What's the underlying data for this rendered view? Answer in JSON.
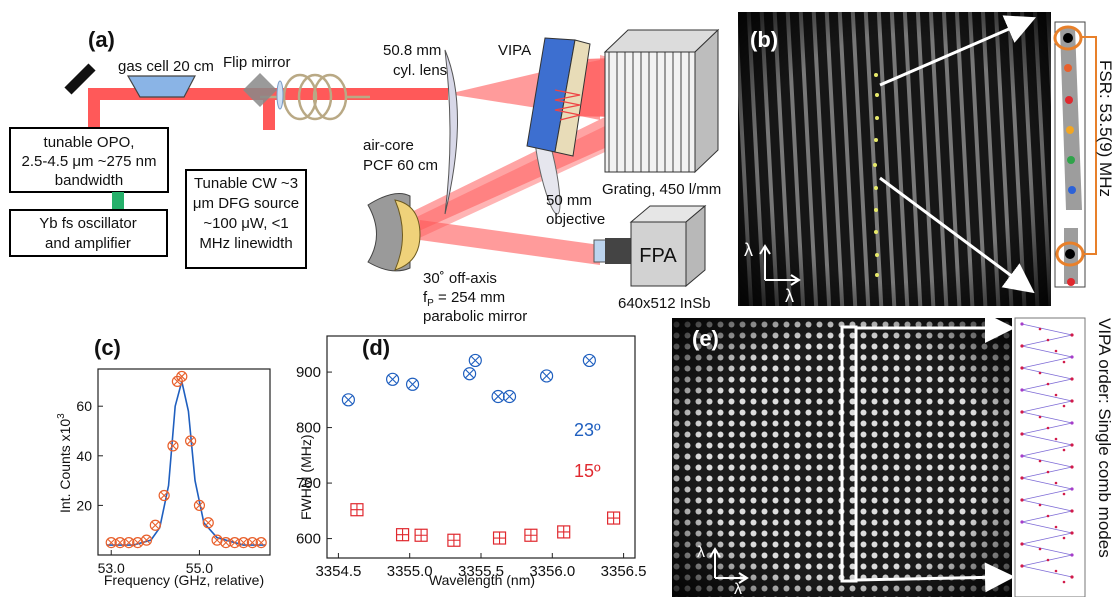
{
  "figure": {
    "panel_a": {
      "label": "(a)",
      "gas_cell": "gas cell 20 cm",
      "flip_mirror": "Flip mirror",
      "opo": [
        "tunable OPO,",
        "2.5-4.5 μm ~275 nm",
        "bandwidth"
      ],
      "yb": [
        "Yb fs oscillator",
        "and amplifier"
      ],
      "cw": [
        "Tunable CW ~3",
        "μm DFG source",
        "~100 μW, <1",
        "MHz linewidth"
      ],
      "cyl_lens": [
        "50.8 mm",
        "cyl. lens"
      ],
      "vipa": "VIPA",
      "pcf": [
        "air-core",
        "PCF 60 cm"
      ],
      "grating": "Grating, 450 l/mm",
      "objective": [
        "50 mm",
        "objective"
      ],
      "fpa": "FPA",
      "fpa_spec": "640x512 InSb",
      "mirror": [
        "30˚ off-axis",
        "f",
        "P",
        " = 254 mm",
        "parabolic mirror"
      ]
    },
    "panel_b": {
      "label": "(b)",
      "axis": "λ",
      "fsr": "FSR: 53.5(9) MHz"
    },
    "panel_c": {
      "label": "(c)",
      "ylabel": "Int. Counts x10",
      "ylabel_exp": "3",
      "xlabel": "Frequency (GHz, relative)"
    },
    "panel_d": {
      "label": "(d)",
      "ylabel": "FWHM (MHz)",
      "xlabel": "Wavelength (nm)",
      "series_labels": [
        "23º",
        "15º"
      ]
    },
    "panel_e": {
      "label": "(e)",
      "axis": "λ",
      "side": "VIPA order: Single comb modes"
    }
  },
  "chart_data": [
    {
      "type": "scatter",
      "panel": "(c)",
      "xlabel": "Frequency (GHz, relative)",
      "ylabel": "Int. Counts x10^3",
      "xlim": [
        52.7,
        56.6
      ],
      "ylim": [
        0,
        75
      ],
      "xticks": [
        53.0,
        55.0
      ],
      "xtick_labels": [
        "53.0",
        "55.0"
      ],
      "yticks": [
        20,
        40,
        60
      ],
      "series": [
        {
          "color": "#e8602c",
          "marker": "circle-x",
          "x": [
            53.0,
            53.2,
            53.4,
            53.6,
            53.8,
            54.0,
            54.2,
            54.4,
            54.5,
            54.6,
            54.8,
            55.0,
            55.2,
            55.4,
            55.6,
            55.8,
            56.0,
            56.2,
            56.4
          ],
          "y": [
            5,
            5,
            5,
            5,
            6,
            12,
            24,
            44,
            70,
            72,
            46,
            20,
            13,
            6,
            5,
            5,
            5,
            5,
            5
          ]
        },
        {
          "color": "#1f5fbf",
          "marker": "line",
          "x": [
            52.9,
            53.5,
            53.9,
            54.1,
            54.3,
            54.45,
            54.6,
            54.75,
            54.9,
            55.1,
            55.4,
            56.0,
            56.5
          ],
          "y": [
            4,
            4,
            6,
            11,
            28,
            60,
            70,
            58,
            30,
            13,
            7,
            4,
            4
          ]
        }
      ]
    },
    {
      "type": "scatter",
      "panel": "(d)",
      "xlabel": "Wavelength (nm)",
      "ylabel": "FWHM (MHz)",
      "xlim": [
        3354.42,
        3356.58
      ],
      "ylim": [
        565,
        965
      ],
      "xticks": [
        3354.5,
        3355,
        3355.5,
        3356,
        3356.5
      ],
      "xtick_labels": [
        "3354.5",
        "3355.0",
        "3355.5",
        "3356.0",
        "3356.5"
      ],
      "yticks": [
        600,
        700,
        800,
        900
      ],
      "series": [
        {
          "name": "23º",
          "color": "#1f5fbf",
          "marker": "circle-x",
          "x": [
            3354.57,
            3354.88,
            3355.02,
            3355.42,
            3355.46,
            3355.62,
            3355.7,
            3355.96,
            3356.26
          ],
          "y": [
            850,
            887,
            878,
            897,
            921,
            856,
            856,
            893,
            921
          ]
        },
        {
          "name": "15º",
          "color": "#e0282e",
          "marker": "square-plus",
          "x": [
            3354.63,
            3354.95,
            3355.08,
            3355.31,
            3355.63,
            3355.85,
            3356.08,
            3356.43
          ],
          "y": [
            652,
            607,
            606,
            597,
            601,
            606,
            612,
            637
          ]
        }
      ]
    }
  ]
}
